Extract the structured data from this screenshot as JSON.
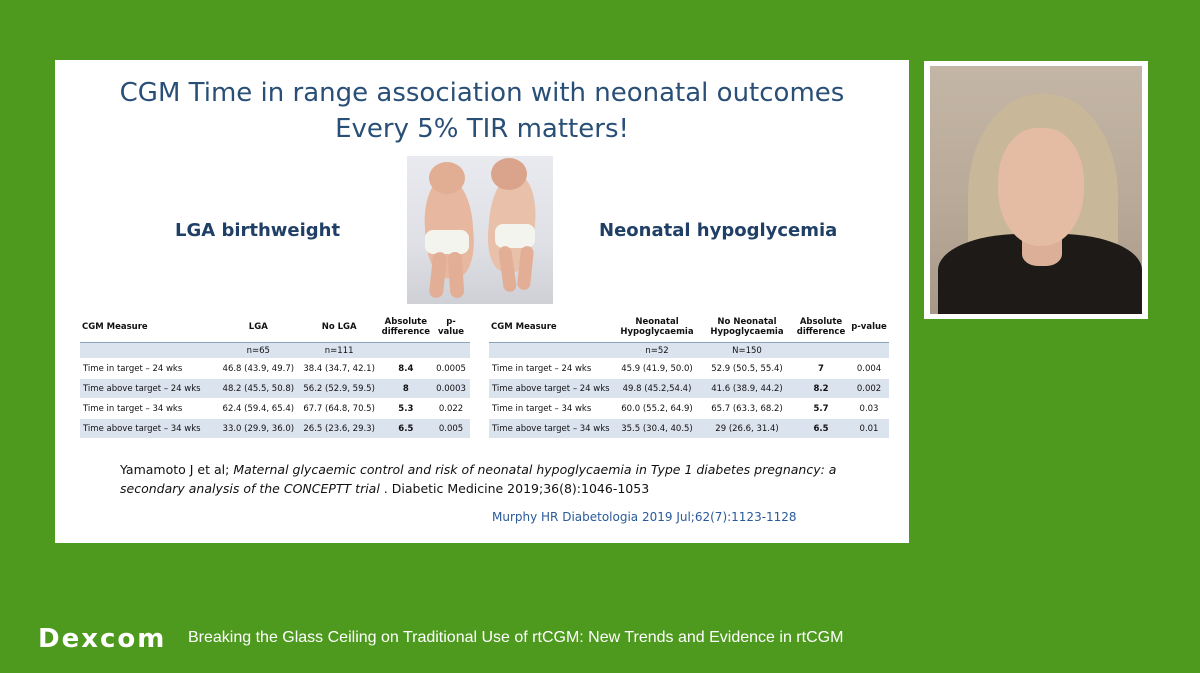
{
  "slide": {
    "title_line1": "CGM Time in range association with neonatal outcomes",
    "title_line2": "Every 5% TIR matters!",
    "left_heading": "LGA birthweight",
    "right_heading": "Neonatal hypoglycemia",
    "left_table": {
      "headers": [
        "CGM Measure",
        "LGA",
        "No LGA",
        "Absolute difference",
        "p-value"
      ],
      "n_row": [
        "",
        "n=65",
        "n=111",
        "",
        ""
      ],
      "rows": [
        [
          "Time in target – 24 wks",
          "46.8 (43.9, 49.7)",
          "38.4 (34.7, 42.1)",
          "8.4",
          "0.0005"
        ],
        [
          "Time above target – 24 wks",
          "48.2 (45.5, 50.8)",
          "56.2 (52.9, 59.5)",
          "8",
          "0.0003"
        ],
        [
          "Time in target – 34 wks",
          "62.4 (59.4, 65.4)",
          "67.7 (64.8, 70.5)",
          "5.3",
          "0.022"
        ],
        [
          "Time above target – 34 wks",
          "33.0 (29.9, 36.0)",
          "26.5 (23.6, 29.3)",
          "6.5",
          "0.005"
        ]
      ]
    },
    "right_table": {
      "headers": [
        "CGM Measure",
        "Neonatal Hypoglycaemia",
        "No Neonatal Hypoglycaemia",
        "Absolute difference",
        "p-value"
      ],
      "n_row": [
        "",
        "n=52",
        "N=150",
        "",
        ""
      ],
      "rows": [
        [
          "Time in target – 24 wks",
          "45.9 (41.9, 50.0)",
          "52.9 (50.5, 55.4)",
          "7",
          "0.004"
        ],
        [
          "Time above target – 24 wks",
          "49.8 (45.2,54.4)",
          "41.6 (38.9, 44.2)",
          "8.2",
          "0.002"
        ],
        [
          "Time in target – 34 wks",
          "60.0 (55.2, 64.9)",
          "65.7 (63.3, 68.2)",
          "5.7",
          "0.03"
        ],
        [
          "Time above target – 34 wks",
          "35.5 (30.4, 40.5)",
          "29 (26.6, 31.4)",
          "6.5",
          "0.01"
        ]
      ]
    },
    "reference1_plain": "Yamamoto J et al; ",
    "reference1_italic": "Maternal glycaemic control and risk of neonatal hypoglycaemia in Type 1 diabetes pregnancy: a secondary analysis of the CONCEPTT trial",
    "reference1_tail": " . Diabetic Medicine 2019;36(8):1046-1053",
    "reference2": "Murphy HR Diabetologia 2019 Jul;62(7):1123-1128"
  },
  "footer": {
    "brand": "Dexcom",
    "tagline": "Breaking the Glass Ceiling on Traditional Use of rtCGM: New Trends and Evidence in rtCGM"
  },
  "colors": {
    "background": "#4e9a1f",
    "title": "#2a4f77",
    "table_band": "#dbe3ef"
  }
}
